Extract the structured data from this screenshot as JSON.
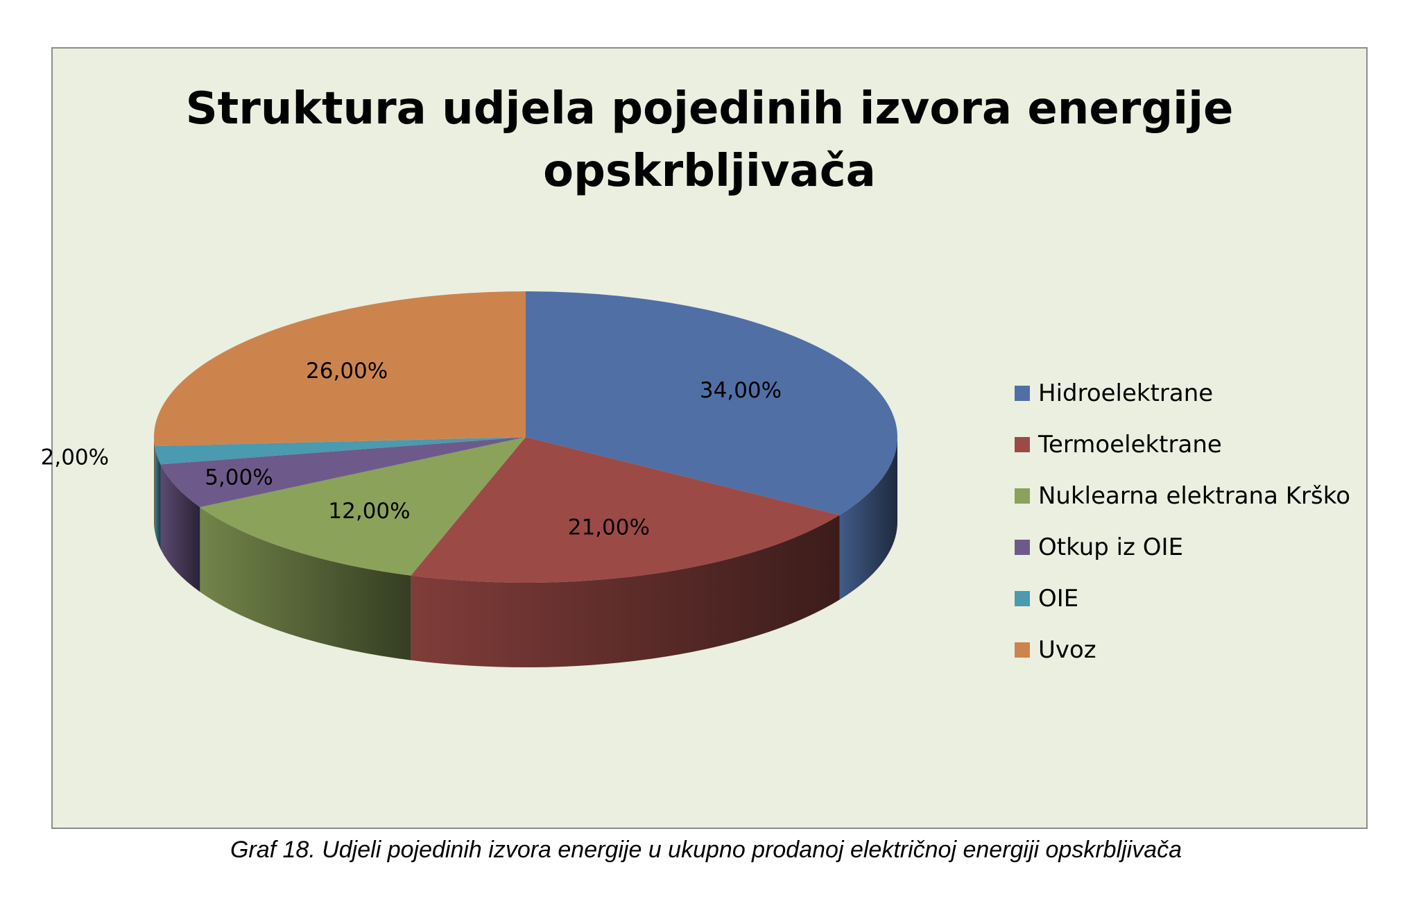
{
  "chart_data": {
    "type": "pie",
    "title_lines": [
      "Struktura udjela pojedinih izvora energije",
      "opskrbljivača"
    ],
    "categories": [
      "Hidroelektrane",
      "Termoelektrane",
      "Nuklearna elektrana Krško",
      "Otkup iz OIE",
      "OIE",
      "Uvoz"
    ],
    "values": [
      34,
      21,
      12,
      5,
      2,
      26
    ],
    "value_labels": [
      "34,00%",
      "21,00%",
      "12,00%",
      "5,00%",
      "2,00%",
      "26,00%"
    ],
    "colors": [
      "#4f6fa5",
      "#9c4a46",
      "#8ba25a",
      "#6e5a8a",
      "#4a9ab0",
      "#cc844c"
    ],
    "style": "3d",
    "legend_position": "right"
  },
  "caption": "Graf 18. Udjeli pojedinih izvora energije u ukupno prodanoj električnoj energiji opskrbljivača"
}
